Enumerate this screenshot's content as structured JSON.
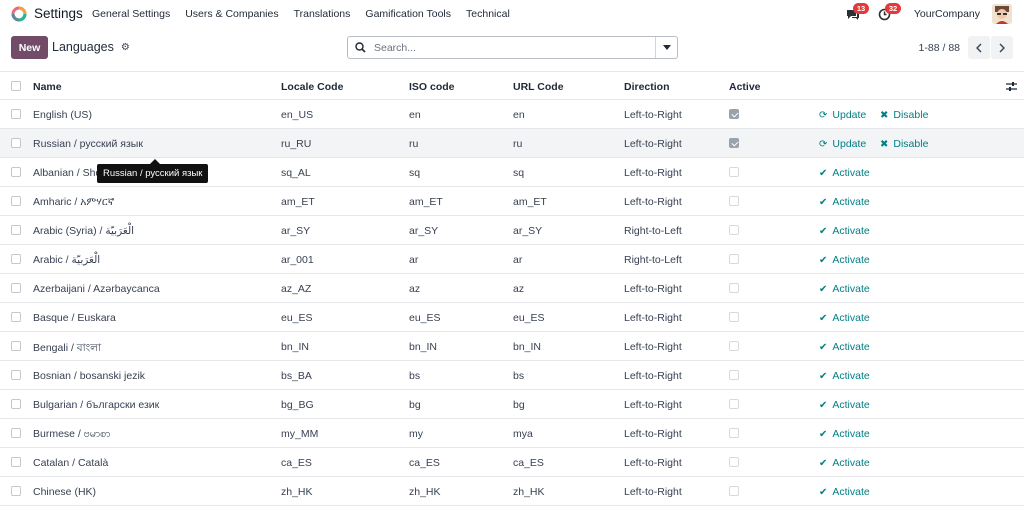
{
  "nav": {
    "app_name": "Settings",
    "menu": [
      "General Settings",
      "Users & Companies",
      "Translations",
      "Gamification Tools",
      "Technical"
    ],
    "messages_count": "13",
    "activities_count": "32",
    "company": "YourCompany"
  },
  "control": {
    "new_label": "New",
    "breadcrumb": "Languages",
    "search_placeholder": "Search...",
    "pager": "1-88 / 88"
  },
  "columns": {
    "name": "Name",
    "locale": "Locale Code",
    "iso": "ISO code",
    "url": "URL Code",
    "direction": "Direction",
    "active": "Active"
  },
  "actions": {
    "update": "Update",
    "disable": "Disable",
    "activate": "Activate"
  },
  "rows": [
    {
      "name": "English (US)",
      "locale": "en_US",
      "iso": "en",
      "url": "en",
      "direction": "Left-to-Right",
      "active": true
    },
    {
      "name": "Russian / русский язык",
      "locale": "ru_RU",
      "iso": "ru",
      "url": "ru",
      "direction": "Left-to-Right",
      "active": true
    },
    {
      "name": "Albanian / Shqip",
      "locale": "sq_AL",
      "iso": "sq",
      "url": "sq",
      "direction": "Left-to-Right",
      "active": false
    },
    {
      "name": "Amharic / አምሃርኛ",
      "locale": "am_ET",
      "iso": "am_ET",
      "url": "am_ET",
      "direction": "Left-to-Right",
      "active": false
    },
    {
      "name": "Arabic (Syria) / الْعَرَبيّة",
      "locale": "ar_SY",
      "iso": "ar_SY",
      "url": "ar_SY",
      "direction": "Right-to-Left",
      "active": false
    },
    {
      "name": "Arabic / الْعَرَبيّة",
      "locale": "ar_001",
      "iso": "ar",
      "url": "ar",
      "direction": "Right-to-Left",
      "active": false
    },
    {
      "name": "Azerbaijani / Azərbaycanca",
      "locale": "az_AZ",
      "iso": "az",
      "url": "az",
      "direction": "Left-to-Right",
      "active": false
    },
    {
      "name": "Basque / Euskara",
      "locale": "eu_ES",
      "iso": "eu_ES",
      "url": "eu_ES",
      "direction": "Left-to-Right",
      "active": false
    },
    {
      "name": "Bengali / বাংলা",
      "locale": "bn_IN",
      "iso": "bn_IN",
      "url": "bn_IN",
      "direction": "Left-to-Right",
      "active": false
    },
    {
      "name": "Bosnian / bosanski jezik",
      "locale": "bs_BA",
      "iso": "bs",
      "url": "bs",
      "direction": "Left-to-Right",
      "active": false
    },
    {
      "name": "Bulgarian / български език",
      "locale": "bg_BG",
      "iso": "bg",
      "url": "bg",
      "direction": "Left-to-Right",
      "active": false
    },
    {
      "name": "Burmese / ဗမာစာ",
      "locale": "my_MM",
      "iso": "my",
      "url": "mya",
      "direction": "Left-to-Right",
      "active": false
    },
    {
      "name": "Catalan / Català",
      "locale": "ca_ES",
      "iso": "ca_ES",
      "url": "ca_ES",
      "direction": "Left-to-Right",
      "active": false
    },
    {
      "name": "Chinese (HK)",
      "locale": "zh_HK",
      "iso": "zh_HK",
      "url": "zh_HK",
      "direction": "Left-to-Right",
      "active": false
    }
  ],
  "tooltip": "Russian / русский язык",
  "colors": {
    "brand": "#714b67",
    "accent": "#017e84",
    "badge": "#e03a3a"
  }
}
